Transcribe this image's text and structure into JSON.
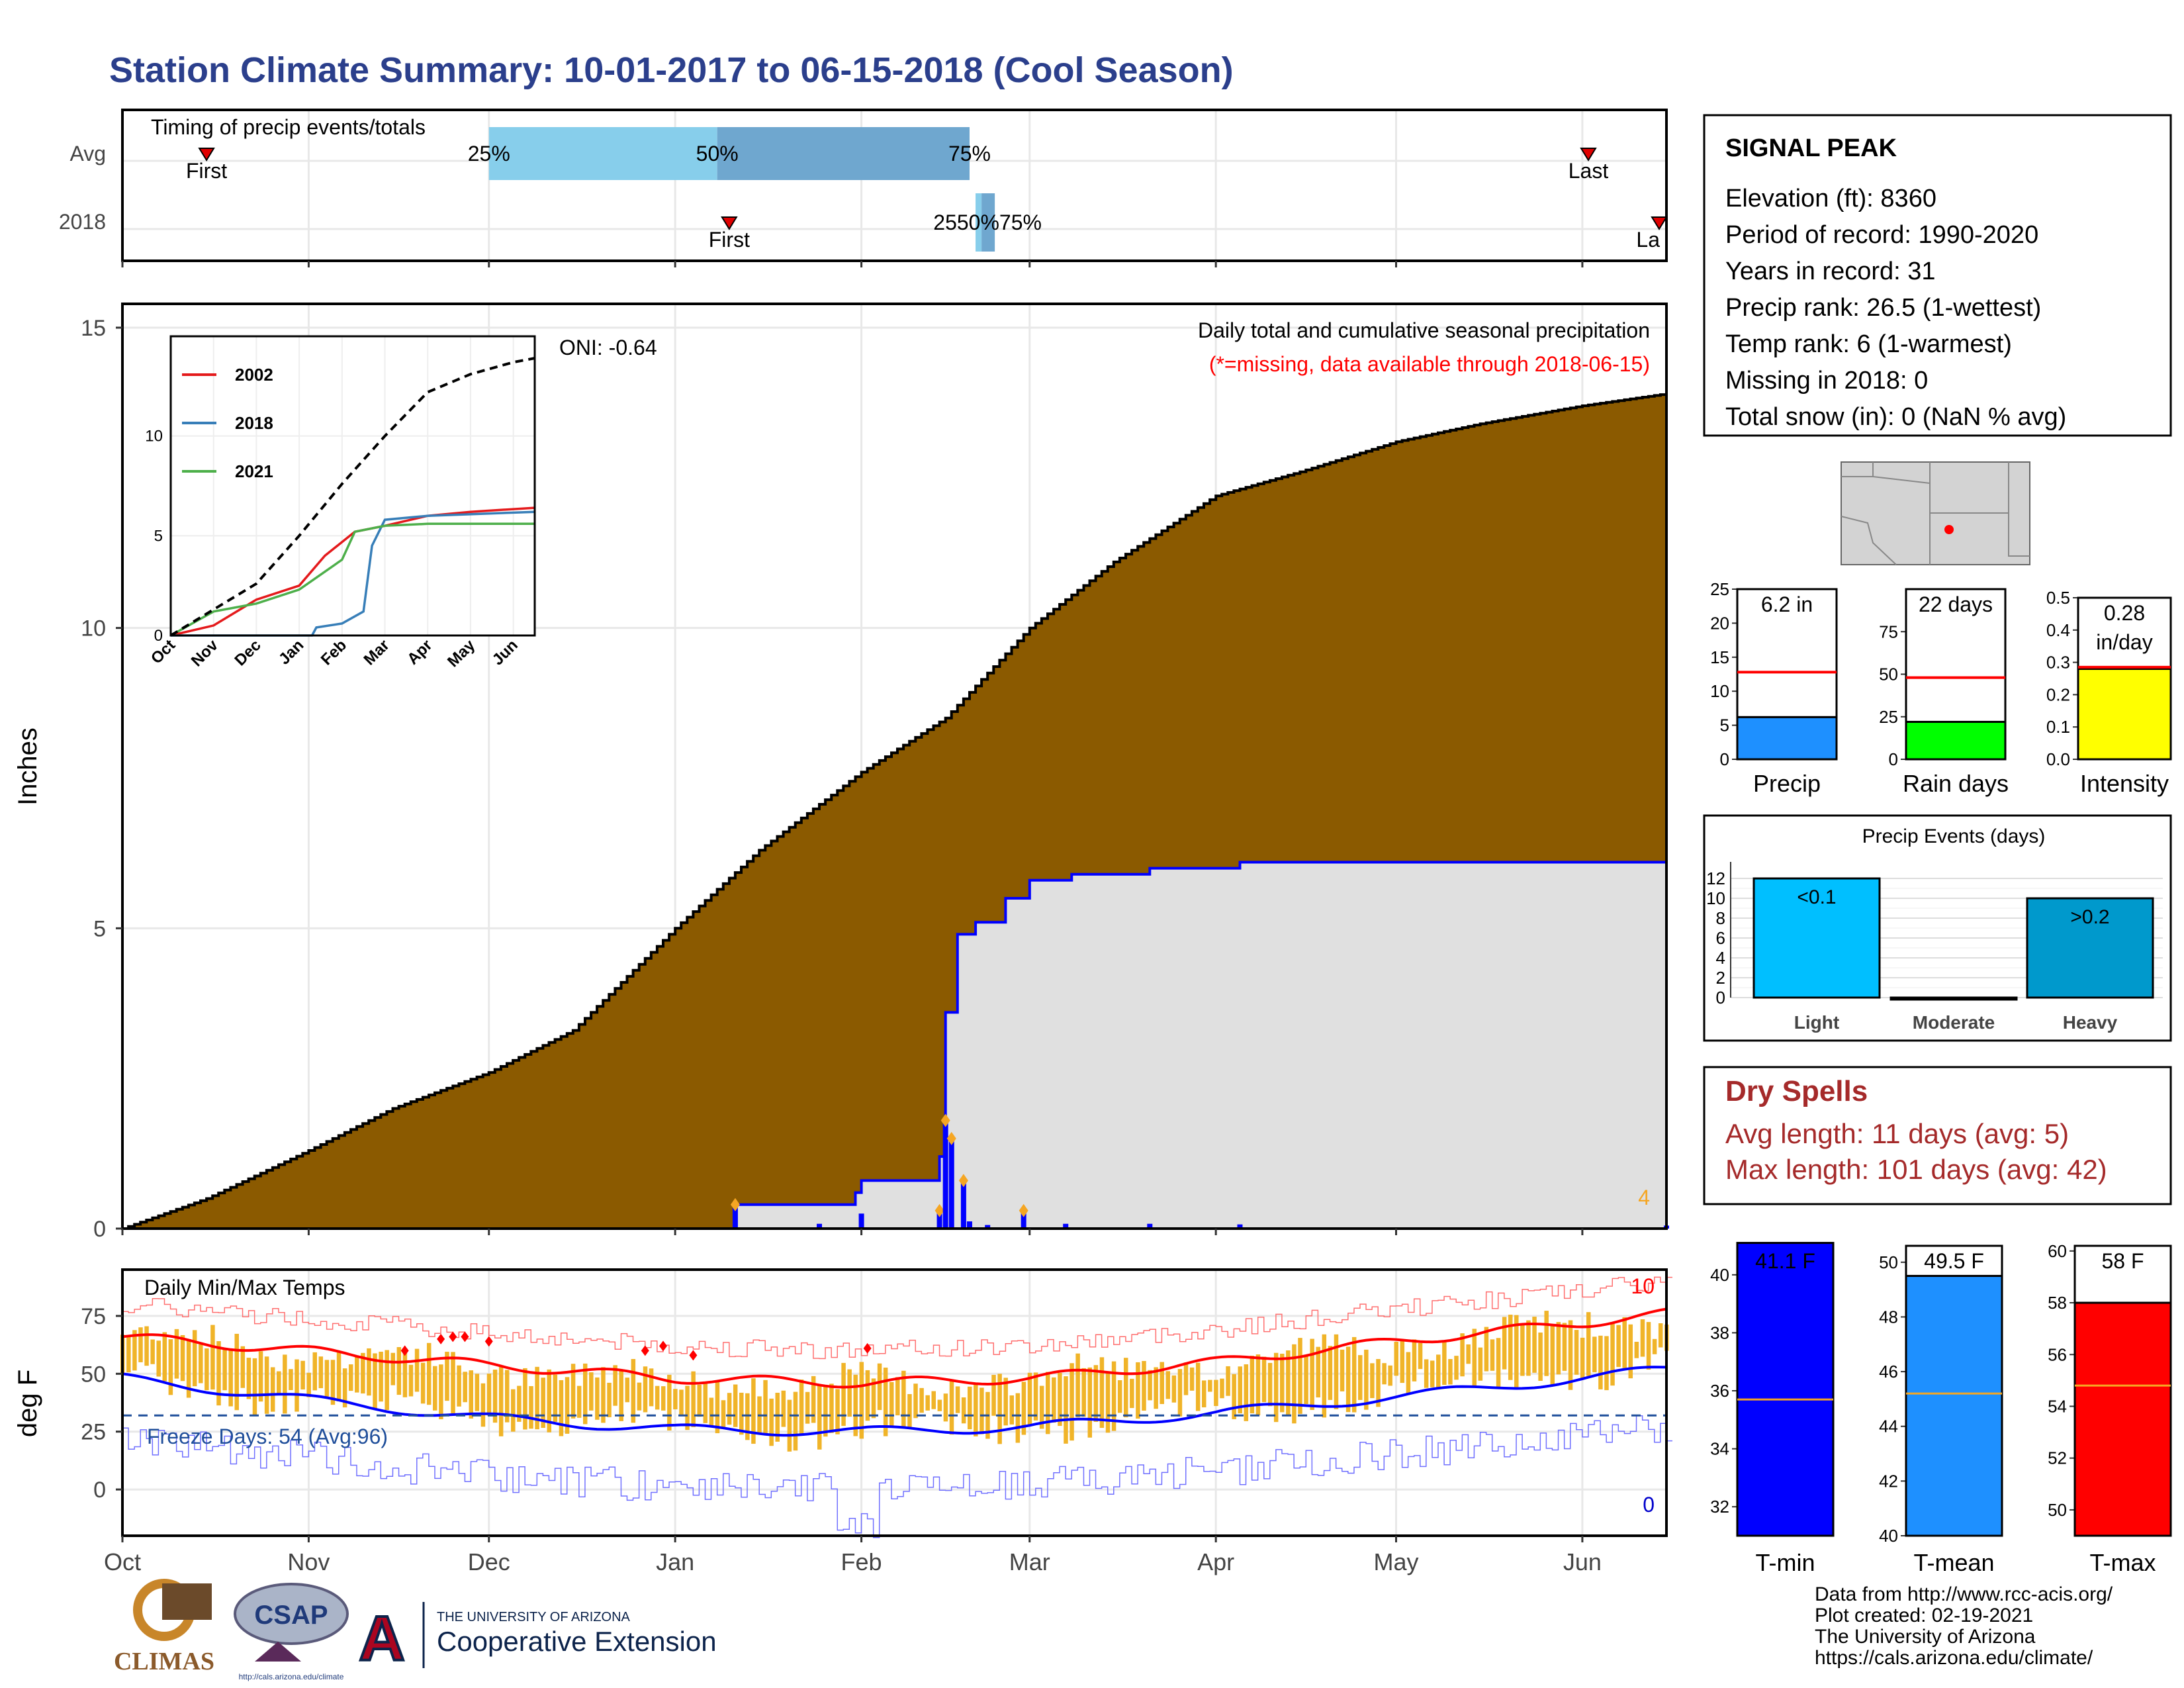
{
  "title": "Station Climate Summary: 10-01-2017 to 06-15-2018 (Cool Season)",
  "station": {
    "name": "SIGNAL PEAK",
    "lines": [
      "Elevation (ft): 8360",
      "Period of record: 1990-2020",
      "Years in record: 31",
      "Precip rank: 26.5 (1-wettest)",
      "Temp rank: 6 (1-warmest)",
      "Missing in 2018: 0",
      "Total snow (in): 0 (NaN % avg)"
    ]
  },
  "colors": {
    "brown": "#8B5A00",
    "grey_area": "#E0E0E0",
    "blue": "#0000FF",
    "orange": "#F5A623",
    "red": "#FF0000",
    "title_blue": "#2B3F8C",
    "dry_red": "#A52A2A"
  },
  "chart_data": [
    {
      "id": "timing",
      "type": "bar",
      "title": "Timing of precip events/totals",
      "categories": [
        "Avg",
        "2018"
      ],
      "avg": {
        "first": "2017-10-15",
        "p25": "2017-12-01",
        "p50": "2018-01-08",
        "p75": "2018-02-19",
        "last": "2018-06-02"
      },
      "year2018": {
        "first": "2018-01-10",
        "p25": "2018-02-20",
        "p50": "2018-02-21",
        "p75": "2018-02-22",
        "last": "2018-06-15"
      },
      "labels": {
        "first": "First",
        "last": "Last",
        "p25": "25%",
        "p50": "50%",
        "p75": "75%",
        "year_last_cut": "La",
        "year_pct": "2550%75%"
      }
    },
    {
      "id": "precip",
      "type": "area",
      "title": "Daily total and cumulative seasonal precipitation",
      "subtitle": "(*=missing, data available through 2018-06-15)",
      "oni": "ONI: -0.64",
      "ylabel": "Inches",
      "ylim": [
        0,
        15
      ],
      "yticks": [
        0,
        5,
        10,
        15
      ],
      "x_labels": [
        "Oct",
        "Nov",
        "Dec",
        "Jan",
        "Feb",
        "Mar",
        "Apr",
        "May",
        "Jun"
      ],
      "x_label_dates": [
        "2017-10-01",
        "2017-11-01",
        "2017-12-01",
        "2018-01-01",
        "2018-02-01",
        "2018-03-01",
        "2018-04-01",
        "2018-05-01",
        "2018-06-01"
      ],
      "start": "2017-10-01",
      "end": "2018-06-15",
      "corner_note": "4",
      "avg_cumulative": [
        [
          "2017-10-01",
          0
        ],
        [
          "2017-10-15",
          0.5
        ],
        [
          "2017-11-01",
          1.3
        ],
        [
          "2017-11-15",
          2.0
        ],
        [
          "2017-12-01",
          2.6
        ],
        [
          "2017-12-15",
          3.3
        ],
        [
          "2018-01-01",
          5.0
        ],
        [
          "2018-01-15",
          6.3
        ],
        [
          "2018-02-01",
          7.6
        ],
        [
          "2018-02-15",
          8.5
        ],
        [
          "2018-03-01",
          10.0
        ],
        [
          "2018-03-15",
          11.1
        ],
        [
          "2018-04-01",
          12.2
        ],
        [
          "2018-04-15",
          12.6
        ],
        [
          "2018-05-01",
          13.1
        ],
        [
          "2018-05-15",
          13.4
        ],
        [
          "2018-06-01",
          13.7
        ],
        [
          "2018-06-15",
          13.9
        ]
      ],
      "obs_cumulative": [
        [
          "2017-10-01",
          0
        ],
        [
          "2018-01-10",
          0
        ],
        [
          "2018-01-11",
          0.4
        ],
        [
          "2018-01-31",
          0.6
        ],
        [
          "2018-02-01",
          0.8
        ],
        [
          "2018-02-14",
          1.2
        ],
        [
          "2018-02-15",
          3.6
        ],
        [
          "2018-02-17",
          4.9
        ],
        [
          "2018-02-20",
          5.1
        ],
        [
          "2018-02-25",
          5.5
        ],
        [
          "2018-03-01",
          5.8
        ],
        [
          "2018-03-08",
          5.9
        ],
        [
          "2018-03-21",
          6.0
        ],
        [
          "2018-04-05",
          6.1
        ],
        [
          "2018-06-15",
          6.2
        ]
      ],
      "daily": [
        [
          "2018-01-11",
          0.4
        ],
        [
          "2018-01-25",
          0.08
        ],
        [
          "2018-02-01",
          0.25
        ],
        [
          "2018-02-14",
          0.3
        ],
        [
          "2018-02-15",
          1.8
        ],
        [
          "2018-02-16",
          1.5
        ],
        [
          "2018-02-18",
          0.8
        ],
        [
          "2018-02-19",
          0.12
        ],
        [
          "2018-02-22",
          0.06
        ],
        [
          "2018-02-28",
          0.3
        ],
        [
          "2018-03-07",
          0.08
        ],
        [
          "2018-03-21",
          0.08
        ],
        [
          "2018-04-05",
          0.07
        ],
        [
          "2018-06-15",
          0.05
        ]
      ],
      "inset": {
        "type": "line",
        "ylim": [
          0,
          15
        ],
        "yticks": [
          0,
          5,
          10
        ],
        "x_labels": [
          "Oct",
          "Nov",
          "Dec",
          "Jan",
          "Feb",
          "Mar",
          "Apr",
          "May",
          "Jun"
        ],
        "series": [
          {
            "name": "2002",
            "color": "#E41A1C",
            "values": [
              [
                0,
                0
              ],
              [
                1,
                0.5
              ],
              [
                2,
                1.8
              ],
              [
                3,
                2.5
              ],
              [
                3.6,
                4.0
              ],
              [
                4.3,
                5.2
              ],
              [
                5,
                5.5
              ],
              [
                6,
                6.0
              ],
              [
                7,
                6.2
              ],
              [
                8.5,
                6.4
              ]
            ]
          },
          {
            "name": "2018",
            "color": "#377EB8",
            "values": [
              [
                0,
                0
              ],
              [
                3.3,
                0
              ],
              [
                3.4,
                0.4
              ],
              [
                4,
                0.6
              ],
              [
                4.5,
                1.2
              ],
              [
                4.7,
                4.5
              ],
              [
                5,
                5.8
              ],
              [
                6,
                6.0
              ],
              [
                8.5,
                6.2
              ]
            ]
          },
          {
            "name": "2021",
            "color": "#4DAF4A",
            "values": [
              [
                0,
                0
              ],
              [
                1,
                1.2
              ],
              [
                2,
                1.6
              ],
              [
                3,
                2.3
              ],
              [
                4,
                3.8
              ],
              [
                4.3,
                5.2
              ],
              [
                5,
                5.5
              ],
              [
                6,
                5.6
              ],
              [
                8.5,
                5.6
              ]
            ]
          },
          {
            "name": "",
            "color": "#000000",
            "dashed": true,
            "values": [
              [
                0,
                0
              ],
              [
                1,
                1.3
              ],
              [
                2,
                2.6
              ],
              [
                3,
                5.0
              ],
              [
                4,
                7.6
              ],
              [
                5,
                10.0
              ],
              [
                6,
                12.2
              ],
              [
                7,
                13.1
              ],
              [
                8,
                13.7
              ],
              [
                8.5,
                13.9
              ]
            ]
          }
        ]
      }
    },
    {
      "id": "temps",
      "type": "line",
      "title": "Daily Min/Max Temps",
      "ylabel": "deg F",
      "ylim": [
        -20,
        95
      ],
      "yticks": [
        0,
        25,
        50,
        75
      ],
      "x_labels": [
        "Oct",
        "Nov",
        "Dec",
        "Jan",
        "Feb",
        "Mar",
        "Apr",
        "May",
        "Jun"
      ],
      "freeze_days": "Freeze Days: 54 (Avg:96)",
      "freeze_line": 32,
      "count_top": "10",
      "count_bottom": "0",
      "avg_max": [
        [
          0,
          66
        ],
        [
          30,
          60
        ],
        [
          60,
          54
        ],
        [
          92,
          48
        ],
        [
          123,
          46
        ],
        [
          151,
          48
        ],
        [
          182,
          55
        ],
        [
          212,
          64
        ],
        [
          243,
          72
        ],
        [
          257,
          76
        ]
      ],
      "avg_min": [
        [
          0,
          48
        ],
        [
          30,
          39
        ],
        [
          60,
          31
        ],
        [
          92,
          26
        ],
        [
          123,
          25
        ],
        [
          151,
          27
        ],
        [
          182,
          33
        ],
        [
          212,
          40
        ],
        [
          243,
          48
        ],
        [
          257,
          52
        ]
      ],
      "record_highs": [
        [
          47,
          60
        ],
        [
          53,
          65
        ],
        [
          55,
          66
        ],
        [
          57,
          66
        ],
        [
          61,
          64
        ],
        [
          87,
          60
        ],
        [
          90,
          62
        ],
        [
          95,
          58
        ],
        [
          124,
          61
        ]
      ]
    },
    {
      "id": "mini_bars",
      "type": "bar",
      "panels": [
        {
          "label": "Precip",
          "value": 6.2,
          "text": "6.2 in",
          "avg": 12.8,
          "ylim": [
            0,
            25
          ],
          "yticks": [
            0,
            5,
            10,
            15,
            20,
            25
          ],
          "color": "#1E90FF"
        },
        {
          "label": "Rain days",
          "value": 22,
          "text": "22 days",
          "avg": 48,
          "ylim": [
            0,
            100
          ],
          "yticks": [
            0,
            25,
            50,
            75
          ],
          "color": "#00FF00"
        },
        {
          "label": "Intensity",
          "value": 0.28,
          "text": "0.28",
          "text2": "in/day",
          "avg": 0.285,
          "ylim": [
            0,
            0.5
          ],
          "yticks": [
            "0.0",
            "0.1",
            "0.2",
            "0.3",
            "0.4",
            "0.5"
          ],
          "color": "#FFFF00"
        }
      ]
    },
    {
      "id": "precip_events",
      "type": "bar",
      "title": "Precip Events (days)",
      "categories": [
        "Light",
        "Moderate",
        "Heavy"
      ],
      "values": [
        12,
        0,
        10
      ],
      "bar_labels": [
        "<0.1",
        "",
        ">0.2"
      ],
      "ylim": [
        0,
        13
      ],
      "yticks": [
        0,
        2,
        4,
        6,
        8,
        10,
        12
      ],
      "colors": [
        "#00BFFF",
        "#1E7FD0",
        "#0099CC"
      ]
    },
    {
      "id": "temp_bars",
      "type": "bar",
      "panels": [
        {
          "label": "T-min",
          "value": 41.1,
          "text": "41.1 F",
          "avg": 35.7,
          "ylim": [
            31,
            41
          ],
          "yticks": [
            32,
            34,
            36,
            38,
            40
          ],
          "color": "#0000FF"
        },
        {
          "label": "T-mean",
          "value": 49.5,
          "text": "49.5 F",
          "avg": 45.2,
          "ylim": [
            40,
            50.6
          ],
          "yticks": [
            40,
            42,
            44,
            46,
            48,
            50
          ],
          "color": "#1E90FF"
        },
        {
          "label": "T-max",
          "value": 58,
          "text": "58 F",
          "avg": 54.8,
          "ylim": [
            49,
            60.2
          ],
          "yticks": [
            50,
            52,
            54,
            56,
            58,
            60
          ],
          "color": "#FF0000"
        }
      ]
    }
  ],
  "dry_spells": {
    "title": "Dry Spells",
    "avg": "Avg length: 11 days (avg: 5)",
    "max": "Max length: 101 days (avg: 42)"
  },
  "footer": {
    "lines": [
      "Data from http://www.rcc-acis.org/",
      "Plot created: 02-19-2021",
      "The University of Arizona",
      "https://cals.arizona.edu/climate/"
    ],
    "climas": "CLIMAS",
    "csap": "CSAP",
    "csap_url": "http://cals.arizona.edu/climate",
    "ua_small": "THE UNIVERSITY OF ARIZONA",
    "ua_big": "Cooperative Extension"
  }
}
